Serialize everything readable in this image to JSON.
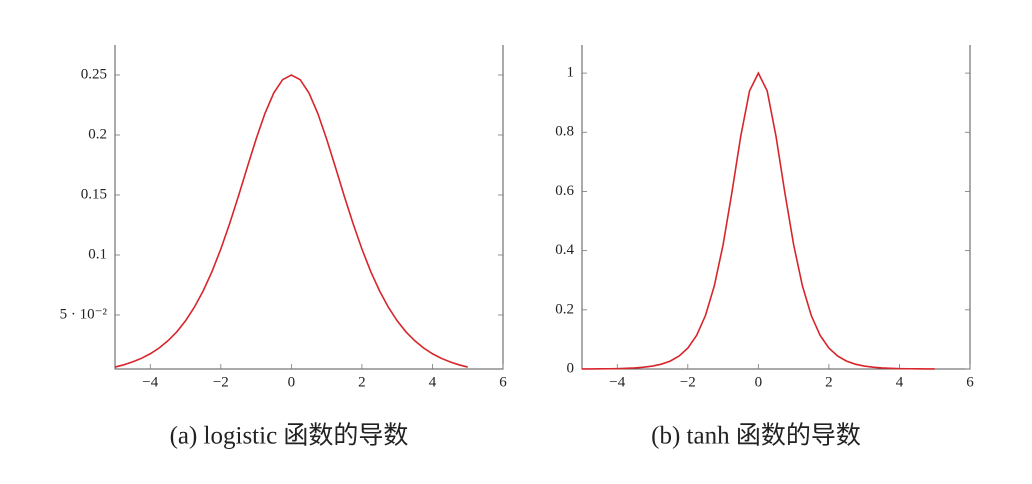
{
  "chart_data": [
    {
      "type": "line",
      "caption": "(a) logistic 函数的导数",
      "x": [
        -5,
        -4.75,
        -4.5,
        -4.25,
        -4,
        -3.75,
        -3.5,
        -3.25,
        -3,
        -2.75,
        -2.5,
        -2.25,
        -2,
        -1.75,
        -1.5,
        -1.25,
        -1,
        -0.75,
        -0.5,
        -0.25,
        0,
        0.25,
        0.5,
        0.75,
        1,
        1.25,
        1.5,
        1.75,
        2,
        2.25,
        2.5,
        2.75,
        3,
        3.25,
        3.5,
        3.75,
        4,
        4.25,
        4.5,
        4.75,
        5
      ],
      "values": [
        0.0066,
        0.0085,
        0.0109,
        0.0139,
        0.0177,
        0.0225,
        0.0285,
        0.0359,
        0.0452,
        0.0565,
        0.0701,
        0.0862,
        0.105,
        0.1261,
        0.1491,
        0.1731,
        0.1966,
        0.2179,
        0.235,
        0.2461,
        0.25,
        0.2461,
        0.235,
        0.2179,
        0.1966,
        0.1731,
        0.1491,
        0.1261,
        0.105,
        0.0862,
        0.0701,
        0.0565,
        0.0452,
        0.0359,
        0.0285,
        0.0225,
        0.0177,
        0.0139,
        0.0109,
        0.0085,
        0.0066
      ],
      "color": "#d7262b",
      "xlim": [
        -5,
        6
      ],
      "xticks": [
        {
          "value": -4,
          "label": "−4"
        },
        {
          "value": -2,
          "label": "−2"
        },
        0,
        2,
        4,
        6
      ],
      "ylim": [
        0.005,
        0.275
      ],
      "yticks": [
        {
          "value": 0.05,
          "label": "5 · 10⁻²"
        },
        0.1,
        0.15,
        0.2,
        0.25
      ]
    },
    {
      "type": "line",
      "caption": "(b) tanh 函数的导数",
      "x": [
        -5,
        -4.75,
        -4.5,
        -4.25,
        -4,
        -3.75,
        -3.5,
        -3.25,
        -3,
        -2.75,
        -2.5,
        -2.25,
        -2,
        -1.75,
        -1.5,
        -1.25,
        -1,
        -0.75,
        -0.5,
        -0.25,
        0,
        0.25,
        0.5,
        0.75,
        1,
        1.25,
        1.5,
        1.75,
        2,
        2.25,
        2.5,
        2.75,
        3,
        3.25,
        3.5,
        3.75,
        4,
        4.25,
        4.5,
        4.75,
        5
      ],
      "values": [
        0.0002,
        0.0003,
        0.0005,
        0.0008,
        0.0013,
        0.0022,
        0.0036,
        0.006,
        0.0099,
        0.0163,
        0.0266,
        0.0435,
        0.0707,
        0.1138,
        0.1807,
        0.2805,
        0.42,
        0.5967,
        0.7864,
        0.94,
        1,
        0.94,
        0.7864,
        0.5967,
        0.42,
        0.2805,
        0.1807,
        0.1138,
        0.0707,
        0.0435,
        0.0266,
        0.0163,
        0.0099,
        0.006,
        0.0036,
        0.0022,
        0.0013,
        0.0008,
        0.0005,
        0.0003,
        0.0002
      ],
      "color": "#d7262b",
      "xlim": [
        -5,
        6
      ],
      "xticks": [
        {
          "value": -4,
          "label": "−4"
        },
        {
          "value": -2,
          "label": "−2"
        },
        0,
        2,
        4,
        6
      ],
      "ylim": [
        0,
        1.095
      ],
      "yticks": [
        0,
        0.2,
        0.4,
        0.6,
        0.8,
        1
      ]
    }
  ]
}
